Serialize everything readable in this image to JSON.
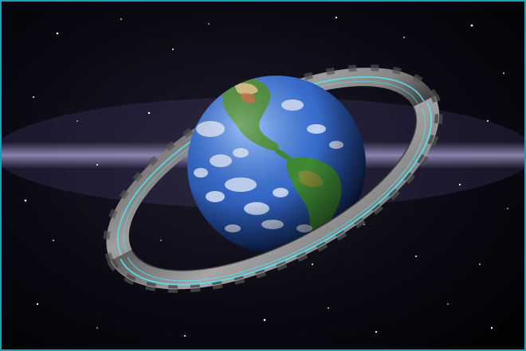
{
  "scene": {
    "frame_color": "#1aa3b8",
    "space_color": "#07070c",
    "nebula_band_color": "#b7a9e6",
    "ring_surface_color": "#8d8d8d",
    "ring_panel_color": "#505050",
    "ring_glow_color": "#54e3f2",
    "ocean_color": "#2f63c9",
    "land_color": "#3f8a35",
    "cloud_color": "#f0f4ff"
  }
}
